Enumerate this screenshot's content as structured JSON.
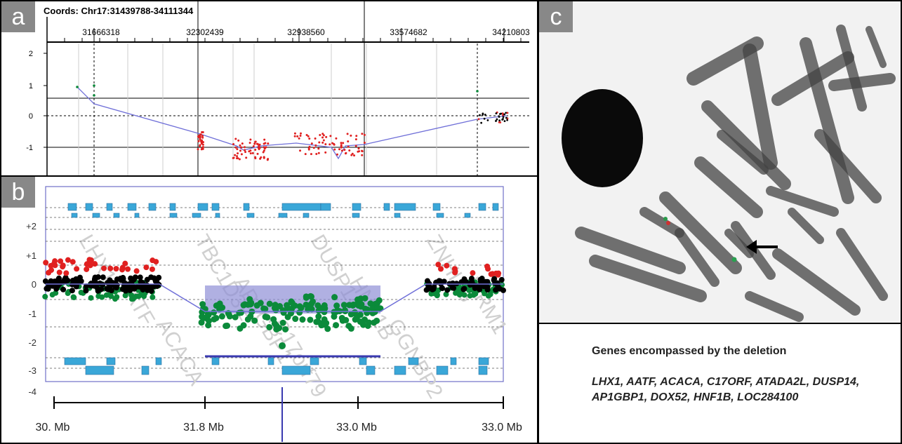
{
  "panel_a": {
    "label": "a",
    "coords": "Coords: Chr17:31439788-34111344",
    "x_ticks": [
      "31666318",
      "32302439",
      "32938560",
      "33574682",
      "34210803"
    ],
    "y_ticks": [
      "2",
      "1",
      "0",
      "-1"
    ]
  },
  "panel_b": {
    "label": "b",
    "y_ticks": [
      "+2",
      "+1",
      "0",
      "-1",
      "-2",
      "-3",
      "-4"
    ],
    "scale_labels": [
      "30. Mb",
      "31.8 Mb",
      "33.0 Mb",
      "33.0 Mb"
    ],
    "gene_watermarks": [
      "LHX1",
      "AATF",
      "ACACA",
      "TBC1D3E",
      "AP1GBP1",
      "C17orf79",
      "DUSP14",
      "HNF1B",
      "GGNBP2",
      "ZNHIT3",
      "MRM1"
    ]
  },
  "panel_c": {
    "label": "c"
  },
  "genes_box": {
    "title": "Genes encompassed by the deletion",
    "genes": "LHX1, AATF, ACACA, C17ORF, ATADA2L, DUSP14, AP1GBP1, DOX52, HNF1B, LOC284100"
  },
  "colors": {
    "fit_line": "#6f6fd8",
    "red_dots": "#e02020",
    "green_dots": "#0b8a3a",
    "black_dots": "#000000",
    "deletion_box": "#8f8fd6",
    "gene_bar": "#3aa7d8",
    "tag_bg": "#888888"
  }
}
